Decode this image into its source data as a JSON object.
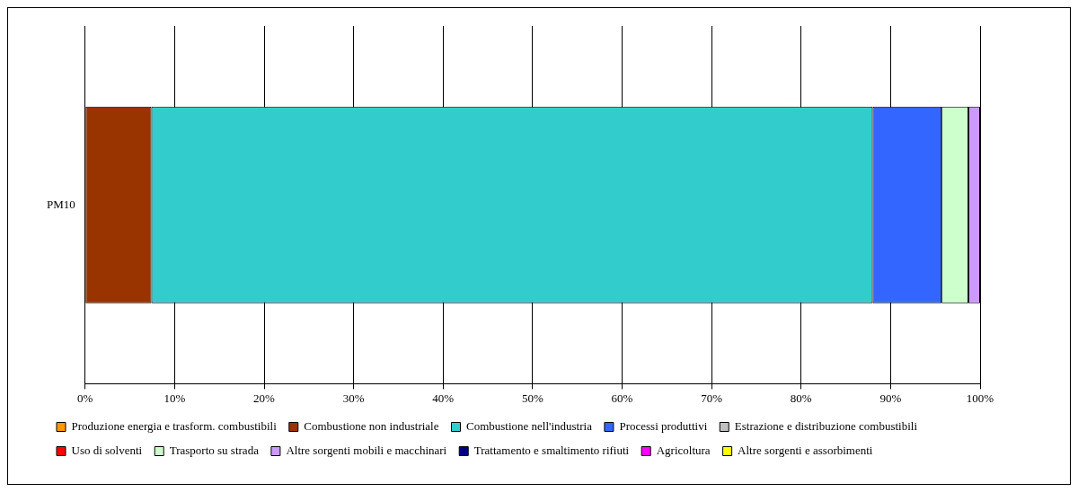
{
  "chart_data": {
    "type": "bar",
    "orientation": "horizontal",
    "stacked": true,
    "categories": [
      "PM10"
    ],
    "series": [
      {
        "name": "Produzione energia e trasform. combustibili",
        "color": "#ff9900",
        "values": [
          0
        ]
      },
      {
        "name": "Combustione non industriale",
        "color": "#993300",
        "values": [
          7.4
        ]
      },
      {
        "name": "Combustione nell'industria",
        "color": "#33cccc",
        "values": [
          80.6
        ]
      },
      {
        "name": "Processi produttivi",
        "color": "#3366ff",
        "values": [
          7.7
        ]
      },
      {
        "name": "Estrazione e distribuzione combustibili",
        "color": "#c0c0c0",
        "values": [
          0
        ]
      },
      {
        "name": "Uso di solventi",
        "color": "#ff0000",
        "values": [
          0
        ]
      },
      {
        "name": "Trasporto su strada",
        "color": "#ccffcc",
        "values": [
          3.0
        ]
      },
      {
        "name": "Altre sorgenti mobili e macchinari",
        "color": "#cc99ff",
        "values": [
          1.3
        ]
      },
      {
        "name": "Trattamento e smaltimento rifiuti",
        "color": "#000080",
        "values": [
          0
        ]
      },
      {
        "name": "Agricoltura",
        "color": "#ff00ff",
        "values": [
          0
        ]
      },
      {
        "name": "Altre sorgenti e assorbimenti",
        "color": "#ffff00",
        "values": [
          0
        ]
      }
    ],
    "xlim": [
      0,
      100
    ],
    "xticks": [
      {
        "value": 0,
        "label": "0%"
      },
      {
        "value": 10,
        "label": "10%"
      },
      {
        "value": 20,
        "label": "20%"
      },
      {
        "value": 30,
        "label": "30%"
      },
      {
        "value": 40,
        "label": "40%"
      },
      {
        "value": 50,
        "label": "50%"
      },
      {
        "value": 60,
        "label": "60%"
      },
      {
        "value": 70,
        "label": "70%"
      },
      {
        "value": 80,
        "label": "80%"
      },
      {
        "value": 90,
        "label": "90%"
      },
      {
        "value": 100,
        "label": "100%"
      }
    ],
    "grid": "x",
    "legend": "bottom"
  }
}
